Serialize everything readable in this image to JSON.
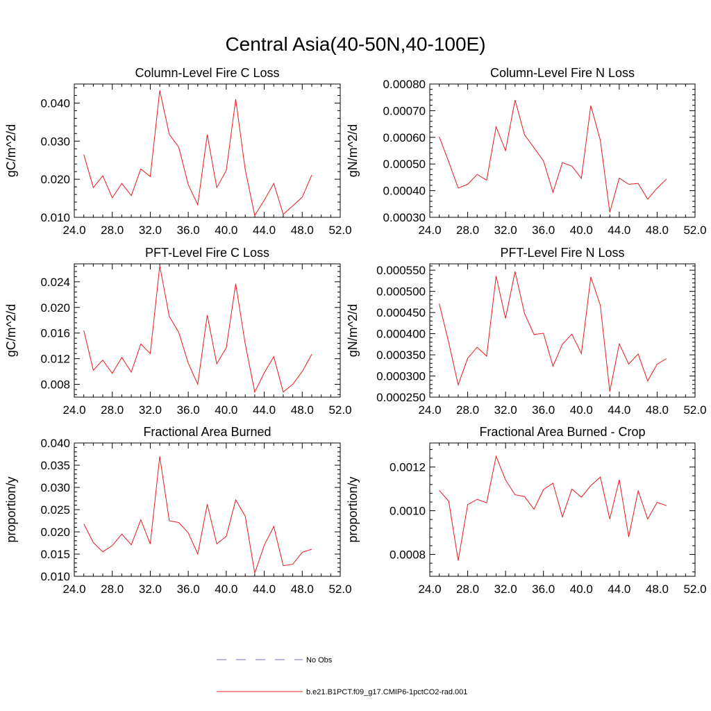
{
  "figure": {
    "title": "Central Asia(40-50N,40-100E)"
  },
  "legend": [
    {
      "label": "No Obs",
      "color": "#6a6ac8",
      "dash": true
    },
    {
      "label": "b.e21.B1PCT.f09_g17.CMIP6-1pctCO2-rad.001",
      "color": "#e8191c",
      "dash": false
    }
  ],
  "chart_data": [
    {
      "type": "line",
      "title": "Column-Level Fire C Loss",
      "ylabel": "gC/m^2/d",
      "xlim": [
        24,
        52
      ],
      "ylim": [
        0.01,
        0.045
      ],
      "xticks": [
        "24.0",
        "28.0",
        "32.0",
        "36.0",
        "40.0",
        "44.0",
        "48.0",
        "52.0"
      ],
      "yticks": [
        "0.010",
        "0.020",
        "0.030",
        "0.040"
      ],
      "ytick_values": [
        0.01,
        0.02,
        0.03,
        0.04
      ],
      "series": [
        {
          "color": "#e8191c",
          "x": [
            25,
            26,
            27,
            28,
            29,
            30,
            31,
            32,
            33,
            34,
            35,
            36,
            37,
            38,
            39,
            40,
            41,
            42,
            43,
            44,
            45,
            46,
            47,
            48,
            49
          ],
          "y": [
            0.0265,
            0.0178,
            0.0209,
            0.0151,
            0.0189,
            0.0157,
            0.0227,
            0.0207,
            0.0433,
            0.0318,
            0.0284,
            0.0186,
            0.0133,
            0.0317,
            0.0178,
            0.0223,
            0.041,
            0.0225,
            0.0105,
            0.0145,
            0.0189,
            0.0108,
            0.013,
            0.0153,
            0.0211
          ]
        }
      ]
    },
    {
      "type": "line",
      "title": "Column-Level Fire N Loss",
      "ylabel": "gN/m^2/d",
      "xlim": [
        24,
        52
      ],
      "ylim": [
        0.0003,
        0.0008
      ],
      "xticks": [
        "24.0",
        "28.0",
        "32.0",
        "36.0",
        "40.0",
        "44.0",
        "48.0",
        "52.0"
      ],
      "yticks": [
        "0.00030",
        "0.00040",
        "0.00050",
        "0.00060",
        "0.00070",
        "0.00080"
      ],
      "ytick_values": [
        0.0003,
        0.0004,
        0.0005,
        0.0006,
        0.0007,
        0.0008
      ],
      "series": [
        {
          "color": "#e8191c",
          "x": [
            25,
            26,
            27,
            28,
            29,
            30,
            31,
            32,
            33,
            34,
            35,
            36,
            37,
            38,
            39,
            40,
            41,
            42,
            43,
            44,
            45,
            46,
            47,
            48,
            49
          ],
          "y": [
            0.000602,
            0.000508,
            0.00041,
            0.000424,
            0.000461,
            0.000439,
            0.000639,
            0.00055,
            0.00074,
            0.00061,
            0.000561,
            0.000512,
            0.000394,
            0.000505,
            0.000492,
            0.000446,
            0.000719,
            0.000589,
            0.000319,
            0.000447,
            0.000424,
            0.000427,
            0.000368,
            0.000409,
            0.000444
          ]
        }
      ]
    },
    {
      "type": "line",
      "title": "PFT-Level Fire C Loss",
      "ylabel": "gC/m^2/d",
      "xlim": [
        24,
        52
      ],
      "ylim": [
        0.006,
        0.0268
      ],
      "xticks": [
        "24.0",
        "28.0",
        "32.0",
        "36.0",
        "40.0",
        "44.0",
        "48.0",
        "52.0"
      ],
      "yticks": [
        "0.008",
        "0.012",
        "0.016",
        "0.020",
        "0.024"
      ],
      "ytick_values": [
        0.008,
        0.012,
        0.016,
        0.02,
        0.024
      ],
      "series": [
        {
          "color": "#e8191c",
          "x": [
            25,
            26,
            27,
            28,
            29,
            30,
            31,
            32,
            33,
            34,
            35,
            36,
            37,
            38,
            39,
            40,
            41,
            42,
            43,
            44,
            45,
            46,
            47,
            48,
            49
          ],
          "y": [
            0.0164,
            0.0102,
            0.0118,
            0.0097,
            0.0122,
            0.0099,
            0.0143,
            0.0128,
            0.0265,
            0.0186,
            0.0161,
            0.0113,
            0.008,
            0.0188,
            0.0112,
            0.0137,
            0.0237,
            0.0143,
            0.0068,
            0.0098,
            0.0123,
            0.0068,
            0.008,
            0.01,
            0.0127
          ]
        }
      ]
    },
    {
      "type": "line",
      "title": "PFT-Level Fire N Loss",
      "ylabel": "gN/m^2/d",
      "xlim": [
        24,
        52
      ],
      "ylim": [
        0.00025,
        0.000565
      ],
      "xticks": [
        "24.0",
        "28.0",
        "32.0",
        "36.0",
        "40.0",
        "44.0",
        "48.0",
        "52.0"
      ],
      "yticks": [
        "0.000250",
        "0.000300",
        "0.000350",
        "0.000400",
        "0.000450",
        "0.000500",
        "0.000550"
      ],
      "ytick_values": [
        0.00025,
        0.0003,
        0.00035,
        0.0004,
        0.00045,
        0.0005,
        0.00055
      ],
      "series": [
        {
          "color": "#e8191c",
          "x": [
            25,
            26,
            27,
            28,
            29,
            30,
            31,
            32,
            33,
            34,
            35,
            36,
            37,
            38,
            39,
            40,
            41,
            42,
            43,
            44,
            45,
            46,
            47,
            48,
            49
          ],
          "y": [
            0.000471,
            0.000379,
            0.000279,
            0.000342,
            0.000368,
            0.000347,
            0.000536,
            0.000436,
            0.000547,
            0.000448,
            0.000398,
            0.000401,
            0.000323,
            0.000375,
            0.000399,
            0.000353,
            0.000534,
            0.000467,
            0.000263,
            0.000376,
            0.000328,
            0.000352,
            0.000288,
            0.000328,
            0.000341
          ]
        }
      ]
    },
    {
      "type": "line",
      "title": "Fractional Area Burned",
      "ylabel": "proportion/y",
      "xlim": [
        24,
        52
      ],
      "ylim": [
        0.01,
        0.04
      ],
      "xticks": [
        "24.0",
        "28.0",
        "32.0",
        "36.0",
        "40.0",
        "44.0",
        "48.0",
        "52.0"
      ],
      "yticks": [
        "0.010",
        "0.015",
        "0.020",
        "0.025",
        "0.030",
        "0.035",
        "0.040"
      ],
      "ytick_values": [
        0.01,
        0.015,
        0.02,
        0.025,
        0.03,
        0.035,
        0.04
      ],
      "series": [
        {
          "color": "#e8191c",
          "x": [
            25,
            26,
            27,
            28,
            29,
            30,
            31,
            32,
            33,
            34,
            35,
            36,
            37,
            38,
            39,
            40,
            41,
            42,
            43,
            44,
            45,
            46,
            47,
            48,
            49
          ],
          "y": [
            0.0218,
            0.0176,
            0.0155,
            0.0169,
            0.0195,
            0.0171,
            0.0227,
            0.0173,
            0.037,
            0.0225,
            0.0221,
            0.0198,
            0.015,
            0.0262,
            0.0173,
            0.019,
            0.0272,
            0.0235,
            0.0107,
            0.017,
            0.0212,
            0.0124,
            0.0127,
            0.0154,
            0.0161
          ]
        }
      ]
    },
    {
      "type": "line",
      "title": "Fractional Area Burned - Crop",
      "ylabel": "proportion/y",
      "xlim": [
        24,
        52
      ],
      "ylim": [
        0.0007,
        0.00131
      ],
      "xticks": [
        "24.0",
        "28.0",
        "32.0",
        "36.0",
        "40.0",
        "44.0",
        "48.0",
        "52.0"
      ],
      "yticks": [
        "0.0008",
        "0.0010",
        "0.0012"
      ],
      "ytick_values": [
        0.0008,
        0.001,
        0.0012
      ],
      "series": [
        {
          "color": "#e8191c",
          "x": [
            25,
            26,
            27,
            28,
            29,
            30,
            31,
            32,
            33,
            34,
            35,
            36,
            37,
            38,
            39,
            40,
            41,
            42,
            43,
            44,
            45,
            46,
            47,
            48,
            49
          ],
          "y": [
            0.001093,
            0.001043,
            0.000772,
            0.001028,
            0.001052,
            0.001036,
            0.001249,
            0.001141,
            0.001073,
            0.001065,
            0.001007,
            0.001097,
            0.001126,
            0.000972,
            0.001099,
            0.001062,
            0.001115,
            0.001154,
            0.000962,
            0.001142,
            0.00088,
            0.001091,
            0.000962,
            0.001038,
            0.001023
          ]
        }
      ]
    }
  ]
}
